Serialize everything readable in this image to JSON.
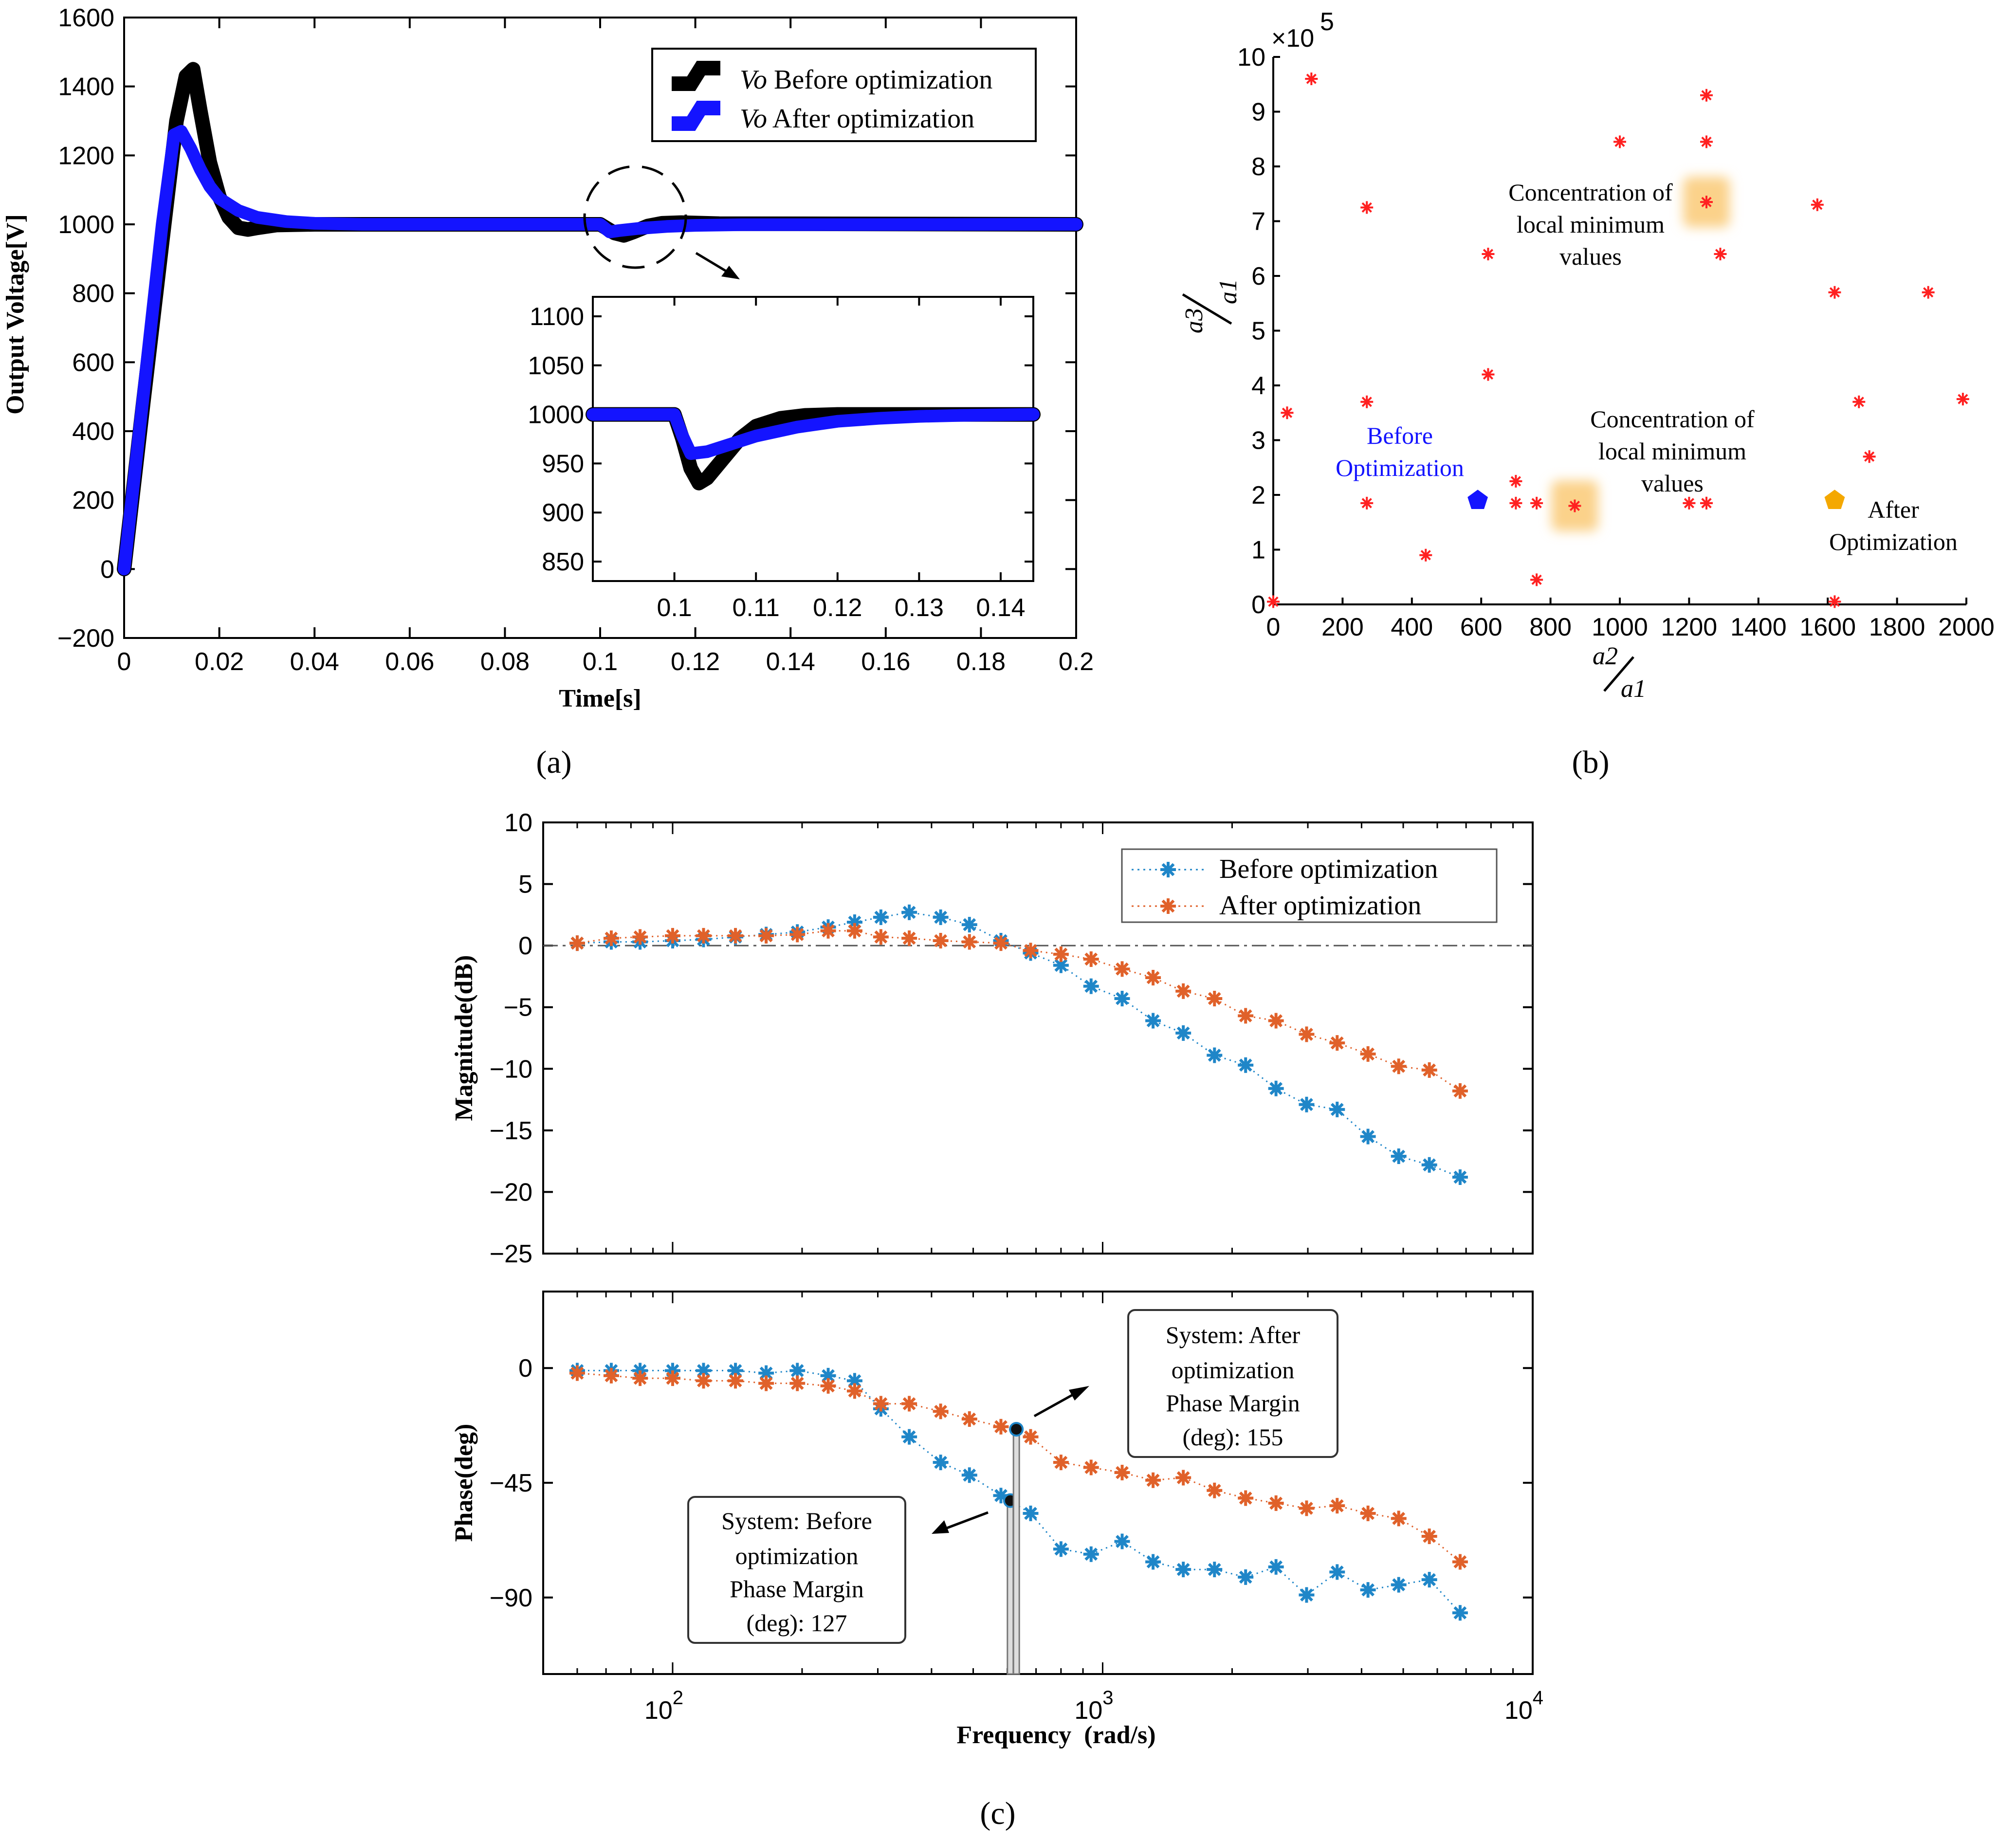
{
  "colors": {
    "black": "#000000",
    "blue": "#1414ff",
    "red": "#ff2020",
    "orange": "#e0612a",
    "bodeBlue": "#1f86c8",
    "gold": "#f4a800",
    "highlight": "#fbd28a"
  },
  "chart_data": [
    {
      "id": "a",
      "caption": "(a)",
      "type": "line",
      "xlabel": "Time[s]",
      "ylabel": "Output Voltage[V]",
      "xlim": [
        0,
        0.2
      ],
      "ylim": [
        -200,
        1600
      ],
      "xticks": [
        "0",
        "0.02",
        "0.04",
        "0.06",
        "0.08",
        "0.1",
        "0.12",
        "0.14",
        "0.16",
        "0.18",
        "0.2"
      ],
      "yticks": [
        "−200",
        "0",
        "200",
        "400",
        "600",
        "800",
        "1000",
        "1200",
        "1400",
        "1600"
      ],
      "legend_position": "top-right",
      "series": [
        {
          "name_italic": "Vo",
          "name_rest": " Before optimization",
          "color": "black",
          "x": [
            0,
            0.004,
            0.008,
            0.011,
            0.013,
            0.0145,
            0.016,
            0.018,
            0.02,
            0.022,
            0.024,
            0.026,
            0.028,
            0.032,
            0.04,
            0.05,
            0.1,
            0.1,
            0.103,
            0.105,
            0.107,
            0.11,
            0.113,
            0.117,
            0.125,
            0.2
          ],
          "y": [
            0,
            480,
            950,
            1300,
            1430,
            1450,
            1330,
            1180,
            1080,
            1020,
            990,
            985,
            990,
            998,
            1000,
            1000,
            1000,
            1000,
            975,
            968,
            978,
            995,
            1003,
            1005,
            1002,
            1000
          ]
        },
        {
          "name_italic": "Vo",
          "name_rest": " After optimization",
          "color": "blue",
          "x": [
            0,
            0.004,
            0.008,
            0.0105,
            0.012,
            0.014,
            0.016,
            0.018,
            0.02,
            0.024,
            0.028,
            0.034,
            0.04,
            0.05,
            0.1,
            0.1,
            0.102,
            0.104,
            0.108,
            0.114,
            0.12,
            0.13,
            0.2
          ],
          "y": [
            0,
            500,
            1000,
            1260,
            1270,
            1220,
            1160,
            1110,
            1075,
            1040,
            1020,
            1008,
            1003,
            1000,
            1000,
            1000,
            978,
            982,
            988,
            994,
            997,
            999,
            1000
          ]
        }
      ],
      "inset": {
        "xlim": [
          0.09,
          0.144
        ],
        "ylim": [
          850,
          1100
        ],
        "xticks": [
          "0.1",
          "0.11",
          "0.12",
          "0.13",
          "0.14"
        ],
        "yticks": [
          "850",
          "900",
          "950",
          "1000",
          "1050",
          "1100"
        ],
        "series": [
          {
            "color": "black",
            "x": [
              0.09,
              0.1,
              0.1,
              0.101,
              0.102,
              0.103,
              0.104,
              0.106,
              0.108,
              0.11,
              0.113,
              0.116,
              0.12,
              0.125,
              0.13,
              0.144
            ],
            "y": [
              1000,
              1000,
              1000,
              975,
              945,
              930,
              935,
              955,
              975,
              988,
              996,
              999,
              1000,
              1000,
              1000,
              1000
            ]
          },
          {
            "color": "blue",
            "x": [
              0.09,
              0.1,
              0.1,
              0.101,
              0.102,
              0.104,
              0.107,
              0.11,
              0.115,
              0.12,
              0.125,
              0.13,
              0.135,
              0.144
            ],
            "y": [
              1000,
              1000,
              1000,
              978,
              960,
              962,
              970,
              978,
              987,
              993,
              996,
              998,
              999,
              1000
            ]
          }
        ]
      }
    },
    {
      "id": "b",
      "caption": "(b)",
      "type": "scatter",
      "xlim": [
        0,
        2000
      ],
      "ylim": [
        0,
        10
      ],
      "y_exponent": "×10^5",
      "xlabel_num": "a2",
      "xlabel_den": "a1",
      "ylabel_num": "a3",
      "ylabel_den": "a1",
      "xticks": [
        "0",
        "200",
        "400",
        "600",
        "800",
        "1000",
        "1200",
        "1400",
        "1600",
        "1800",
        "2000"
      ],
      "yticks": [
        "0",
        "1",
        "2",
        "3",
        "4",
        "5",
        "6",
        "7",
        "8",
        "9",
        "10"
      ],
      "points": {
        "x": [
          110,
          270,
          270,
          270,
          620,
          620,
          40,
          440,
          700,
          700,
          760,
          760,
          870,
          1000,
          1200,
          1250,
          1250,
          1250,
          1250,
          1290,
          1250,
          1570,
          1620,
          1690,
          1720,
          1890,
          1990,
          1620,
          0
        ],
        "y": [
          9.6,
          7.25,
          3.7,
          1.85,
          6.4,
          4.2,
          3.5,
          0.9,
          2.25,
          1.85,
          1.85,
          0.45,
          1.8,
          8.45,
          1.85,
          9.3,
          8.45,
          7.35,
          1.85,
          6.4,
          1.85,
          7.3,
          5.7,
          3.7,
          2.7,
          5.7,
          3.75,
          0.05,
          0.05
        ]
      },
      "highlights": [
        {
          "x": 870,
          "y": 1.8
        },
        {
          "x": 1250,
          "y": 7.35
        }
      ],
      "markers": [
        {
          "label": "Before Optimization",
          "x": 590,
          "y": 1.9,
          "color": "blue"
        },
        {
          "label": "After Optimization",
          "x": 1620,
          "y": 1.9,
          "color": "gold"
        }
      ],
      "annotations": [
        {
          "lines": [
            "Concentration of",
            "local minimum",
            "values"
          ]
        },
        {
          "lines": [
            "Concentration of",
            "local minimum",
            "values"
          ]
        }
      ],
      "before_lines": [
        "Before",
        "Optimization"
      ],
      "after_lines": [
        "After",
        "Optimization"
      ]
    },
    {
      "id": "c",
      "caption": "(c)",
      "type": "line",
      "xlabel": "Frequency  (rad/s)",
      "x_scale": "log",
      "xlim": [
        50,
        10000
      ],
      "xticks": [
        {
          "base": "10",
          "exp": "2"
        },
        {
          "base": "10",
          "exp": "3"
        },
        {
          "base": "10",
          "exp": "4"
        }
      ],
      "legend_position": "top-right",
      "magnitude": {
        "ylabel": "Magnitude(dB)",
        "ylim": [
          -25,
          10
        ],
        "yticks": [
          "−25",
          "−20",
          "−15",
          "−10",
          "−5",
          "0",
          "5",
          "10"
        ],
        "series": [
          {
            "name": "Before optimization",
            "color": "bodeBlue",
            "x": [
              60,
              72,
              84,
              100,
              118,
              140,
              165,
              195,
              230,
              265,
              305,
              355,
              420,
              490,
              580,
              680,
              800,
              940,
              1110,
              1310,
              1540,
              1820,
              2150,
              2530,
              2980,
              3510,
              4140,
              4880,
              5750,
              6780
            ],
            "y": [
              0.2,
              0.3,
              0.3,
              0.4,
              0.5,
              0.7,
              0.9,
              1.1,
              1.5,
              1.9,
              2.3,
              2.7,
              2.3,
              1.7,
              0.4,
              -0.6,
              -1.6,
              -3.3,
              -4.3,
              -6.1,
              -7.1,
              -8.9,
              -9.7,
              -11.6,
              -12.9,
              -13.3,
              -15.5,
              -17.1,
              -17.8,
              -18.8
            ]
          },
          {
            "name": "After optimization",
            "color": "orange",
            "x": [
              60,
              72,
              84,
              100,
              118,
              140,
              165,
              195,
              230,
              265,
              305,
              355,
              420,
              490,
              580,
              680,
              800,
              940,
              1110,
              1310,
              1540,
              1820,
              2150,
              2530,
              2980,
              3510,
              4140,
              4880,
              5750,
              6780
            ],
            "y": [
              0.2,
              0.6,
              0.7,
              0.8,
              0.8,
              0.8,
              0.8,
              0.9,
              1.2,
              1.2,
              0.7,
              0.6,
              0.4,
              0.3,
              0.2,
              -0.4,
              -0.7,
              -1.1,
              -1.9,
              -2.6,
              -3.7,
              -4.3,
              -5.7,
              -6.1,
              -7.2,
              -7.9,
              -8.8,
              -9.8,
              -10.1,
              -11.8
            ]
          }
        ]
      },
      "phase": {
        "ylabel": "Phase(deg)",
        "ylim": [
          -120,
          30
        ],
        "yticks": [
          "−90",
          "−45",
          "0"
        ],
        "series": [
          {
            "color": "bodeBlue",
            "x": [
              60,
              72,
              84,
              100,
              118,
              140,
              165,
              195,
              230,
              265,
              305,
              355,
              420,
              490,
              580,
              680,
              800,
              940,
              1110,
              1310,
              1540,
              1820,
              2150,
              2530,
              2980,
              3510,
              4140,
              4880,
              5750,
              6780
            ],
            "y": [
              -1,
              -1,
              -1,
              -1,
              -1,
              -1,
              -2,
              -1,
              -3,
              -5,
              -16,
              -27,
              -37,
              -42,
              -50,
              -57,
              -71,
              -73,
              -68,
              -76,
              -79,
              -79,
              -82,
              -78,
              -89,
              -80,
              -87,
              -85,
              -83,
              -96
            ]
          },
          {
            "color": "orange",
            "x": [
              60,
              72,
              84,
              100,
              118,
              140,
              165,
              195,
              230,
              265,
              305,
              355,
              420,
              490,
              580,
              680,
              800,
              940,
              1110,
              1310,
              1540,
              1820,
              2150,
              2530,
              2980,
              3510,
              4140,
              4880,
              5750,
              6780
            ],
            "y": [
              -2,
              -3,
              -4,
              -4,
              -5,
              -5,
              -6,
              -6,
              -7,
              -9,
              -14,
              -14,
              -17,
              -20,
              -23,
              -27,
              -37,
              -39,
              -41,
              -44,
              -43,
              -48,
              -51,
              -53,
              -55,
              -54,
              -57,
              -59,
              -66,
              -76
            ]
          }
        ],
        "markers": [
          {
            "x": 610,
            "y": -52
          },
          {
            "x": 630,
            "y": -24
          }
        ],
        "annotations": [
          {
            "lines": [
              "System: Before",
              "optimization",
              "Phase Margin",
              "(deg): 127"
            ]
          },
          {
            "lines": [
              "System: After",
              "optimization",
              "Phase Margin",
              "(deg): 155"
            ]
          }
        ]
      }
    }
  ]
}
